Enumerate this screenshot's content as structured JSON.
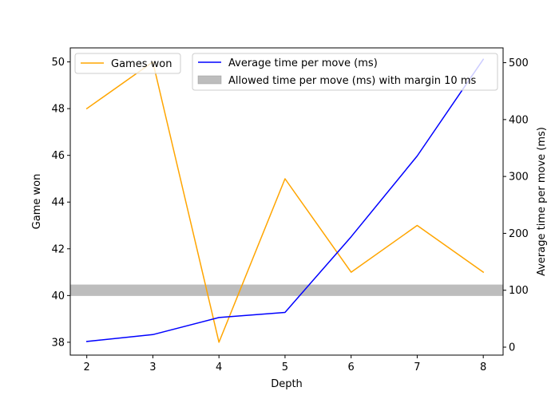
{
  "chart_data": {
    "type": "line",
    "x": [
      2,
      3,
      4,
      5,
      6,
      7,
      8
    ],
    "xlabel": "Depth",
    "xticks": [
      "2",
      "3",
      "4",
      "5",
      "6",
      "7",
      "8"
    ],
    "xlim": [
      1.75,
      8.3
    ],
    "left_axis": {
      "label": "Game won",
      "ylim": [
        37.45,
        50.6
      ],
      "ticks": [
        "38",
        "40",
        "42",
        "44",
        "46",
        "48",
        "50"
      ]
    },
    "right_axis": {
      "label": "Average time per move (ms)",
      "ylim": [
        -14,
        526
      ],
      "ticks": [
        "0",
        "100",
        "200",
        "300",
        "400",
        "500"
      ]
    },
    "series": [
      {
        "name": "Games won",
        "axis": "left",
        "color": "#ffa500",
        "values": [
          48,
          50,
          38,
          45,
          41,
          43,
          41
        ]
      },
      {
        "name": "Average time per move (ms)",
        "axis": "right",
        "color": "#0000ff",
        "values": [
          10,
          22,
          52,
          61,
          194,
          336,
          506
        ]
      }
    ],
    "band": {
      "name": "Allowed time per move (ms) with margin 10 ms",
      "axis": "right",
      "color": "#bdbdbd",
      "range": [
        90,
        110
      ]
    },
    "legends": [
      {
        "position": "upper-left",
        "entries": [
          "Games won"
        ]
      },
      {
        "position": "upper-right",
        "entries": [
          "Average time per move (ms)",
          "Allowed time per move (ms) with margin 10 ms"
        ]
      }
    ],
    "grid": false
  }
}
